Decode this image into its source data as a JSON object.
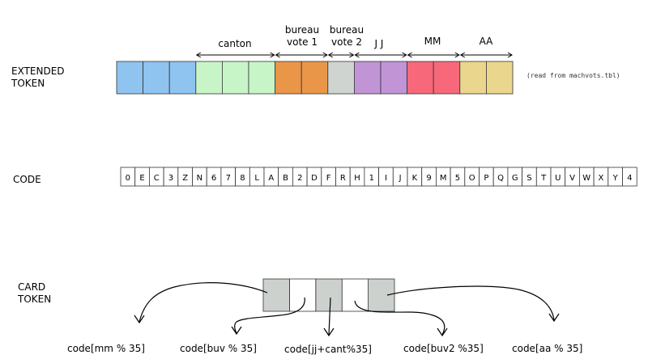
{
  "rows": {
    "extended_label": "EXTENDED\nTOKEN",
    "code_label": "CODE",
    "card_label": "CARD\nTOKEN"
  },
  "extended_token": {
    "cells": [
      "#8fc3f0",
      "#8fc3f0",
      "#8fc3f0",
      "#c8f5c8",
      "#c8f5c8",
      "#c8f5c8",
      "#ea9649",
      "#ea9649",
      "#d0d4d1",
      "#c194d6",
      "#c194d6",
      "#f6687a",
      "#f6687a",
      "#ebd68e",
      "#ebd68e"
    ],
    "groups": [
      {
        "label": "canton",
        "start": 3,
        "end": 6
      },
      {
        "label": "bureau\nvote 1",
        "start": 6,
        "end": 8
      },
      {
        "label": "bureau\nvote 2",
        "start": 8,
        "end": 9
      },
      {
        "label": "J J",
        "start": 9,
        "end": 11
      },
      {
        "label": "MM",
        "start": 11,
        "end": 13
      },
      {
        "label": "AA",
        "start": 13,
        "end": 15
      }
    ],
    "note": "(read from machvots.tbl)"
  },
  "code": {
    "chars": [
      "0",
      "E",
      "C",
      "3",
      "Z",
      "N",
      "6",
      "7",
      "8",
      "L",
      "A",
      "B",
      "2",
      "D",
      "F",
      "R",
      "H",
      "1",
      "I",
      "J",
      "K",
      "9",
      "M",
      "5",
      "O",
      "P",
      "Q",
      "G",
      "S",
      "T",
      "U",
      "V",
      "W",
      "X",
      "Y",
      "4"
    ]
  },
  "card_token": {
    "cells": [
      "#cdd1ce",
      "#ffffff",
      "#cdd1ce",
      "#ffffff",
      "#cdd1ce"
    ]
  },
  "captions": [
    "code[mm % 35]",
    "code[buv % 35]",
    "code[jj+cant%35]",
    "code[buv2 %35]",
    "code[aa % 35]"
  ]
}
